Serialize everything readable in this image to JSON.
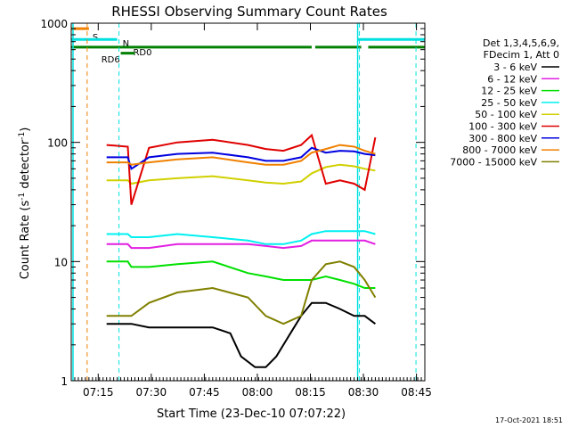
{
  "chart_data": {
    "type": "line",
    "title": "RHESSI Observing Summary Count Rates",
    "xlabel": "Start Time (23-Dec-10 07:07:22)",
    "ylabel_main": "Count Rate (s",
    "ylabel_sup1": "-1",
    "ylabel_mid": " detector",
    "ylabel_sup2": "-1",
    "ylabel_end": ")",
    "yscale": "log",
    "ylim": [
      1,
      1000
    ],
    "xlim_min": [
      0,
      100
    ],
    "x_ticks_min": [
      7.63,
      22.63,
      37.63,
      52.63,
      67.63,
      82.63,
      97.63
    ],
    "x_tick_labels": [
      "07:15",
      "07:30",
      "07:45",
      "08:00",
      "08:15",
      "08:30",
      "08:45"
    ],
    "y_ticks": [
      1,
      10,
      100,
      1000
    ],
    "y_tick_labels": [
      "1",
      "10",
      "100",
      "1000"
    ],
    "timestamp": "17-Oct-2021 18:51",
    "legend_header": [
      "Det 1,3,4,5,6,9,",
      "FDecim 1, Att 0"
    ],
    "series": [
      {
        "name": "3 - 6 keV",
        "color": "#000000",
        "x": [
          10,
          12,
          16,
          17,
          22,
          30,
          40,
          45,
          48,
          52,
          55,
          58,
          62,
          65,
          68,
          72,
          76,
          80,
          83,
          86
        ],
        "y": [
          3,
          3,
          3,
          3,
          2.8,
          2.8,
          2.8,
          2.5,
          1.6,
          1.3,
          1.3,
          1.6,
          2.5,
          3.5,
          4.5,
          4.5,
          4,
          3.5,
          3.5,
          3
        ]
      },
      {
        "name": "6 - 12 keV",
        "color": "#e21fe2",
        "x": [
          10,
          16,
          17,
          22,
          30,
          40,
          50,
          55,
          60,
          65,
          68,
          72,
          76,
          80,
          83,
          86
        ],
        "y": [
          14,
          14,
          13,
          13,
          14,
          14,
          14,
          13.5,
          13,
          13.5,
          15,
          15,
          15,
          15,
          15,
          14
        ]
      },
      {
        "name": "12 - 25 keV",
        "color": "#00e000",
        "x": [
          10,
          16,
          17,
          22,
          30,
          40,
          50,
          55,
          60,
          65,
          68,
          72,
          76,
          80,
          83,
          86
        ],
        "y": [
          10,
          10,
          9,
          9,
          9.5,
          10,
          8,
          7.5,
          7,
          7,
          7,
          7.5,
          7,
          6.5,
          6,
          6
        ]
      },
      {
        "name": "25 - 50 keV",
        "color": "#00f0f0",
        "x": [
          10,
          16,
          17,
          22,
          30,
          40,
          50,
          55,
          60,
          65,
          68,
          72,
          76,
          80,
          83,
          86
        ],
        "y": [
          17,
          17,
          16,
          16,
          17,
          16,
          15,
          14,
          14,
          15,
          17,
          18,
          18,
          18,
          18,
          17
        ]
      },
      {
        "name": "50 - 100 keV",
        "color": "#d0d000",
        "x": [
          10,
          16,
          17,
          22,
          30,
          40,
          50,
          55,
          60,
          65,
          68,
          72,
          76,
          80,
          83,
          86
        ],
        "y": [
          48,
          48,
          45,
          48,
          50,
          52,
          48,
          46,
          45,
          47,
          55,
          62,
          65,
          63,
          60,
          58
        ]
      },
      {
        "name": "100 - 300 keV",
        "color": "#e00000",
        "x": [
          10,
          16,
          17,
          22,
          30,
          40,
          50,
          55,
          60,
          65,
          68,
          72,
          76,
          80,
          83,
          86
        ],
        "y": [
          95,
          92,
          30,
          90,
          100,
          105,
          95,
          88,
          85,
          95,
          115,
          45,
          48,
          45,
          40,
          110
        ]
      },
      {
        "name": "300 - 800 keV",
        "color": "#0000e0",
        "x": [
          10,
          16,
          17,
          22,
          30,
          40,
          50,
          55,
          60,
          65,
          68,
          72,
          76,
          80,
          83,
          86
        ],
        "y": [
          75,
          75,
          60,
          75,
          80,
          82,
          75,
          70,
          70,
          75,
          90,
          82,
          85,
          84,
          80,
          78
        ]
      },
      {
        "name": "800 - 7000 keV",
        "color": "#f08000",
        "x": [
          10,
          16,
          17,
          22,
          30,
          40,
          50,
          55,
          60,
          65,
          68,
          72,
          76,
          80,
          83,
          86
        ],
        "y": [
          68,
          68,
          65,
          68,
          72,
          75,
          68,
          65,
          65,
          70,
          82,
          88,
          95,
          92,
          85,
          80
        ]
      },
      {
        "name": "7000 - 15000 keV",
        "color": "#808000",
        "x": [
          10,
          16,
          17,
          22,
          30,
          40,
          50,
          55,
          60,
          65,
          68,
          72,
          76,
          80,
          83,
          86
        ],
        "y": [
          3.5,
          3.5,
          3.5,
          4.5,
          5.5,
          6,
          5,
          3.5,
          3,
          3.5,
          7,
          9.5,
          10,
          9,
          7,
          5
        ]
      }
    ],
    "flags": [
      {
        "name": "S",
        "color": "#f08000",
        "y": 900,
        "segments": [
          [
            0,
            5
          ]
        ]
      },
      {
        "name": "N",
        "color": "#00e0e0",
        "y": 730,
        "segments": [
          [
            0,
            13
          ],
          [
            81,
            100
          ]
        ]
      },
      {
        "name": "RD0",
        "color": "#008000",
        "y": 630,
        "segments": [
          [
            0,
            68
          ],
          [
            69,
            82
          ],
          [
            84,
            100
          ]
        ]
      },
      {
        "name": "RD6",
        "color": "#008000",
        "y": 560,
        "segments": [
          [
            14,
            18
          ]
        ]
      }
    ],
    "vlines": [
      {
        "x": 4.5,
        "color": "#f08000"
      },
      {
        "x": 13.5,
        "color": "#00e0e0"
      },
      {
        "x": 81.5,
        "color": "#00e0e0"
      },
      {
        "x": 97.5,
        "color": "#00e0e0"
      }
    ],
    "solid_vlines": [
      {
        "x": 0.5,
        "color": "#00e0e0"
      },
      {
        "x": 81,
        "color": "#00e0e0"
      }
    ]
  }
}
